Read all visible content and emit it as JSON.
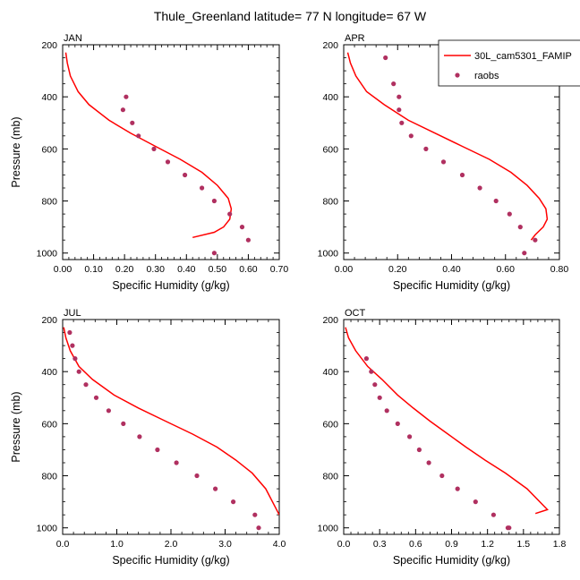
{
  "title": "Thule_Greenland  latitude= 77 N longitude= 67 W",
  "legend": {
    "series": [
      "30L_cam5301_FAMIP",
      "raobs"
    ]
  },
  "colors": {
    "model": "#ff0000",
    "raobs": "#b03060"
  },
  "chart_data": [
    {
      "type": "line",
      "panel_label": "JAN",
      "xlabel": "Specific Humidity (g/kg)",
      "ylabel": "Pressure (mb)",
      "xlim": [
        0.0,
        0.7
      ],
      "ylim": [
        200,
        1025
      ],
      "y_inverted": true,
      "xticks": [
        "0.00",
        "0.10",
        "0.20",
        "0.30",
        "0.40",
        "0.50",
        "0.60",
        "0.70"
      ],
      "xtick_values": [
        0.0,
        0.1,
        0.2,
        0.3,
        0.4,
        0.5,
        0.6,
        0.7
      ],
      "yticks": [
        "200",
        "400",
        "600",
        "800",
        "1000"
      ],
      "ytick_values": [
        200,
        400,
        600,
        800,
        1000
      ],
      "series": [
        {
          "name": "30L_cam5301_FAMIP",
          "style": "line",
          "x": [
            0.01,
            0.015,
            0.025,
            0.05,
            0.085,
            0.15,
            0.22,
            0.3,
            0.38,
            0.45,
            0.5,
            0.535,
            0.545,
            0.54,
            0.52,
            0.49,
            0.42
          ],
          "y": [
            230,
            270,
            320,
            380,
            430,
            490,
            540,
            590,
            640,
            690,
            740,
            790,
            830,
            870,
            900,
            920,
            940
          ]
        },
        {
          "name": "raobs",
          "style": "marker",
          "x": [
            0.205,
            0.195,
            0.225,
            0.245,
            0.295,
            0.34,
            0.395,
            0.45,
            0.49,
            0.54,
            0.58,
            0.6,
            0.49
          ],
          "y": [
            400,
            450,
            500,
            550,
            600,
            650,
            700,
            750,
            800,
            850,
            900,
            950,
            1000
          ]
        }
      ]
    },
    {
      "type": "line",
      "panel_label": "APR",
      "xlabel": "Specific Humidity (g/kg)",
      "ylabel": "",
      "xlim": [
        0.0,
        0.8
      ],
      "ylim": [
        200,
        1025
      ],
      "y_inverted": true,
      "xticks": [
        "0.00",
        "0.20",
        "0.40",
        "0.60",
        "0.80"
      ],
      "xtick_values": [
        0.0,
        0.2,
        0.4,
        0.6,
        0.8
      ],
      "yticks": [
        "200",
        "400",
        "600",
        "800",
        "1000"
      ],
      "ytick_values": [
        200,
        400,
        600,
        800,
        1000
      ],
      "series": [
        {
          "name": "30L_cam5301_FAMIP",
          "style": "line",
          "x": [
            0.015,
            0.025,
            0.045,
            0.085,
            0.15,
            0.24,
            0.34,
            0.44,
            0.54,
            0.62,
            0.68,
            0.725,
            0.75,
            0.755,
            0.74,
            0.71,
            0.695
          ],
          "y": [
            230,
            270,
            320,
            380,
            430,
            490,
            540,
            590,
            640,
            690,
            740,
            790,
            830,
            870,
            900,
            930,
            950
          ]
        },
        {
          "name": "raobs",
          "style": "marker",
          "x": [
            0.155,
            0.185,
            0.205,
            0.205,
            0.215,
            0.25,
            0.305,
            0.37,
            0.44,
            0.505,
            0.565,
            0.615,
            0.655,
            0.71,
            0.67
          ],
          "y": [
            250,
            350,
            400,
            450,
            500,
            550,
            600,
            650,
            700,
            750,
            800,
            850,
            900,
            950,
            1000
          ]
        }
      ]
    },
    {
      "type": "line",
      "panel_label": "JUL",
      "xlabel": "Specific Humidity (g/kg)",
      "ylabel": "Pressure (mb)",
      "xlim": [
        0.0,
        4.0
      ],
      "ylim": [
        200,
        1025
      ],
      "y_inverted": true,
      "xticks": [
        "0.0",
        "1.0",
        "2.0",
        "3.0",
        "4.0"
      ],
      "xtick_values": [
        0.0,
        1.0,
        2.0,
        3.0,
        4.0
      ],
      "yticks": [
        "200",
        "400",
        "600",
        "800",
        "1000"
      ],
      "ytick_values": [
        200,
        400,
        600,
        800,
        1000
      ],
      "series": [
        {
          "name": "30L_cam5301_FAMIP",
          "style": "line",
          "x": [
            0.02,
            0.06,
            0.14,
            0.3,
            0.55,
            0.95,
            1.4,
            1.9,
            2.4,
            2.85,
            3.2,
            3.5,
            3.75,
            4.0
          ],
          "y": [
            230,
            270,
            320,
            380,
            430,
            490,
            540,
            590,
            640,
            690,
            740,
            790,
            850,
            950
          ]
        },
        {
          "name": "raobs",
          "style": "marker",
          "x": [
            0.13,
            0.18,
            0.23,
            0.3,
            0.43,
            0.62,
            0.85,
            1.12,
            1.42,
            1.75,
            2.1,
            2.48,
            2.82,
            3.15,
            3.55,
            3.62
          ],
          "y": [
            250,
            300,
            350,
            400,
            450,
            500,
            550,
            600,
            650,
            700,
            750,
            800,
            850,
            900,
            950,
            1000
          ]
        }
      ]
    },
    {
      "type": "line",
      "panel_label": "OCT",
      "xlabel": "Specific Humidity (g/kg)",
      "ylabel": "",
      "xlim": [
        0.0,
        1.8
      ],
      "ylim": [
        200,
        1025
      ],
      "y_inverted": true,
      "xticks": [
        "0.0",
        "0.3",
        "0.6",
        "0.9",
        "1.2",
        "1.5",
        "1.8"
      ],
      "xtick_values": [
        0.0,
        0.3,
        0.6,
        0.9,
        1.2,
        1.5,
        1.8
      ],
      "yticks": [
        "200",
        "400",
        "600",
        "800",
        "1000"
      ],
      "ytick_values": [
        200,
        400,
        600,
        800,
        1000
      ],
      "series": [
        {
          "name": "30L_cam5301_FAMIP",
          "style": "line",
          "x": [
            0.015,
            0.04,
            0.1,
            0.2,
            0.32,
            0.45,
            0.58,
            0.72,
            0.87,
            1.02,
            1.18,
            1.35,
            1.53,
            1.7,
            1.6
          ],
          "y": [
            230,
            270,
            320,
            380,
            430,
            490,
            540,
            590,
            640,
            690,
            740,
            790,
            850,
            930,
            945
          ]
        },
        {
          "name": "raobs",
          "style": "marker",
          "x": [
            0.19,
            0.23,
            0.26,
            0.3,
            0.36,
            0.45,
            0.55,
            0.63,
            0.71,
            0.82,
            0.95,
            1.1,
            1.25,
            1.38,
            1.37
          ],
          "y": [
            350,
            400,
            450,
            500,
            550,
            600,
            650,
            700,
            750,
            800,
            850,
            900,
            950,
            1000,
            1000
          ]
        }
      ]
    }
  ]
}
